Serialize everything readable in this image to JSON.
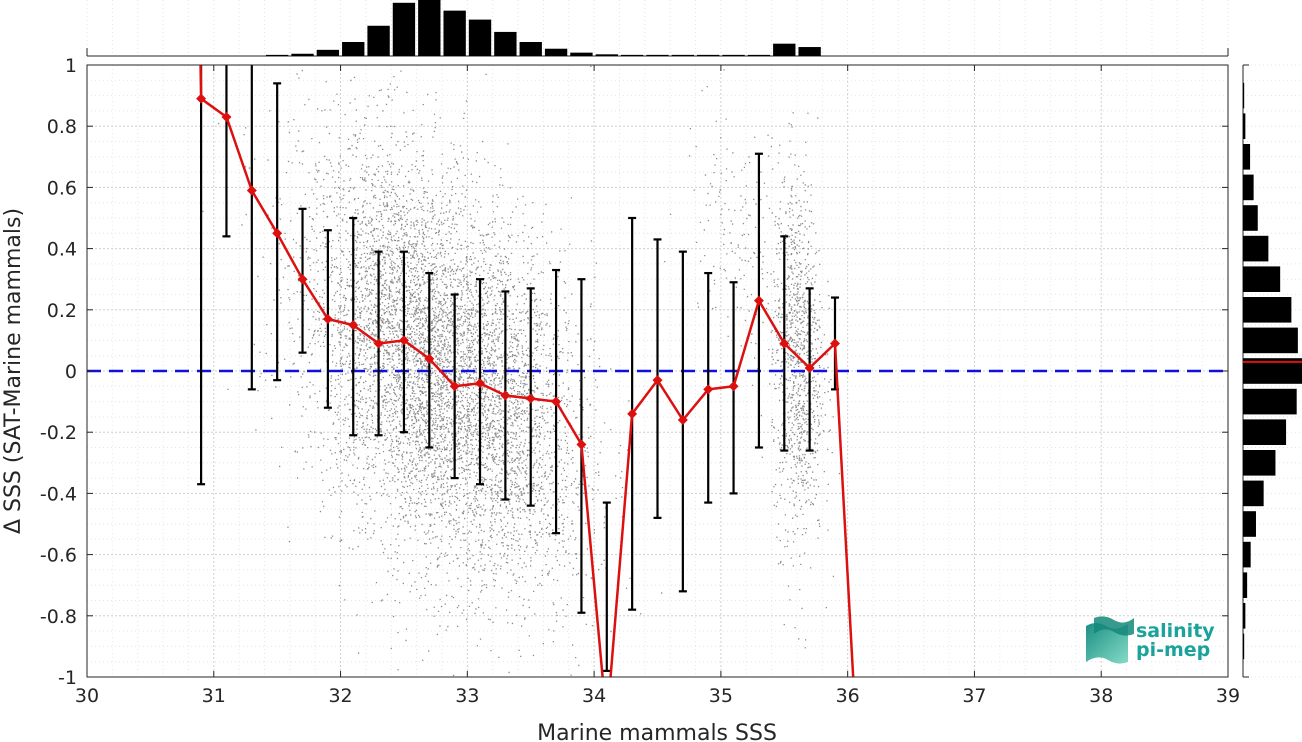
{
  "chart_data": {
    "type": "scatter",
    "xlabel": "Marine mammals SSS",
    "ylabel": "Δ SSS (SAT-Marine mammals)",
    "xlim": [
      30,
      39
    ],
    "ylim": [
      -1,
      1
    ],
    "xticks": [
      "30",
      "31",
      "32",
      "33",
      "34",
      "35",
      "36",
      "37",
      "38",
      "39"
    ],
    "yticks": [
      "-1",
      "-0.8",
      "-0.6",
      "-0.4",
      "-0.2",
      "0",
      "0.2",
      "0.4",
      "0.6",
      "0.8",
      "1"
    ],
    "grid": true,
    "reference_line": {
      "y": 0,
      "style": "dashed",
      "color": "#1010dd"
    },
    "binned_mean": {
      "color": "#dd1010",
      "x": [
        30.9,
        31.1,
        31.3,
        31.5,
        31.7,
        31.9,
        32.1,
        32.3,
        32.5,
        32.7,
        32.9,
        33.1,
        33.3,
        33.5,
        33.7,
        33.9,
        34.1,
        34.3,
        34.5,
        34.7,
        34.9,
        35.1,
        35.3,
        35.5,
        35.7,
        35.9
      ],
      "mean": [
        0.89,
        0.83,
        0.59,
        0.45,
        0.3,
        0.17,
        0.15,
        0.09,
        0.1,
        0.04,
        -0.05,
        -0.04,
        -0.08,
        -0.09,
        -0.1,
        -0.24,
        -1.15,
        -0.14,
        -0.03,
        -0.16,
        -0.06,
        -0.05,
        0.23,
        0.09,
        0.01,
        0.09
      ],
      "err_low": [
        -0.37,
        0.44,
        -0.06,
        -0.03,
        0.06,
        -0.12,
        -0.21,
        -0.21,
        -0.2,
        -0.25,
        -0.35,
        -0.37,
        -0.42,
        -0.44,
        -0.53,
        -0.79,
        -0.43,
        -0.78,
        -0.48,
        -0.72,
        -0.43,
        -0.4,
        -0.25,
        -0.26,
        -0.26,
        -0.06
      ],
      "err_high": [
        1.05,
        1.05,
        1.05,
        0.94,
        0.53,
        0.46,
        0.5,
        0.39,
        0.39,
        0.32,
        0.25,
        0.3,
        0.26,
        0.27,
        0.33,
        0.3,
        -0.98,
        0.5,
        0.43,
        0.39,
        0.32,
        0.29,
        0.71,
        0.44,
        0.27,
        0.24
      ],
      "line_exit_x": 36.07
    },
    "scatter_clusters": [
      {
        "x_center": 32.6,
        "x_sd": 0.45,
        "y_center": 0.05,
        "y_sd": 0.32,
        "count": 5200,
        "color": "#8c8c8c"
      },
      {
        "x_center": 33.3,
        "x_sd": 0.35,
        "y_center": -0.12,
        "y_sd": 0.3,
        "count": 1800,
        "color": "#8c8c8c"
      },
      {
        "x_center": 35.6,
        "x_sd": 0.1,
        "y_center": 0.05,
        "y_sd": 0.3,
        "count": 1100,
        "color": "#8c8c8c"
      },
      {
        "x_center": 35.1,
        "x_sd": 0.2,
        "y_center": 0.45,
        "y_sd": 0.2,
        "count": 150,
        "color": "#8c8c8c"
      }
    ],
    "top_histogram": {
      "color": "#000000",
      "bin_centers": [
        31.5,
        31.7,
        31.9,
        32.1,
        32.3,
        32.5,
        32.7,
        32.9,
        33.1,
        33.3,
        33.5,
        33.7,
        33.9,
        34.1,
        34.3,
        34.5,
        34.7,
        34.9,
        35.1,
        35.3,
        35.5,
        35.7
      ],
      "counts": [
        0.02,
        0.04,
        0.11,
        0.25,
        0.54,
        0.95,
        1.0,
        0.81,
        0.65,
        0.43,
        0.25,
        0.13,
        0.06,
        0.03,
        0.02,
        0.02,
        0.02,
        0.02,
        0.02,
        0.02,
        0.22,
        0.16
      ]
    },
    "right_histogram": {
      "color": "#000000",
      "median_color": "#dd1010",
      "median": 0.03,
      "bin_centers": [
        0.9,
        0.8,
        0.7,
        0.6,
        0.5,
        0.4,
        0.3,
        0.2,
        0.1,
        0.0,
        -0.1,
        -0.2,
        -0.3,
        -0.4,
        -0.5,
        -0.6,
        -0.7,
        -0.8,
        -0.9
      ],
      "counts": [
        0.02,
        0.04,
        0.12,
        0.18,
        0.25,
        0.43,
        0.63,
        0.82,
        0.93,
        1.0,
        0.91,
        0.73,
        0.55,
        0.35,
        0.22,
        0.13,
        0.07,
        0.04,
        0.02
      ]
    }
  },
  "logo": {
    "line1": "salinity",
    "line2": "pi-mep",
    "color": "#1aa39a"
  }
}
